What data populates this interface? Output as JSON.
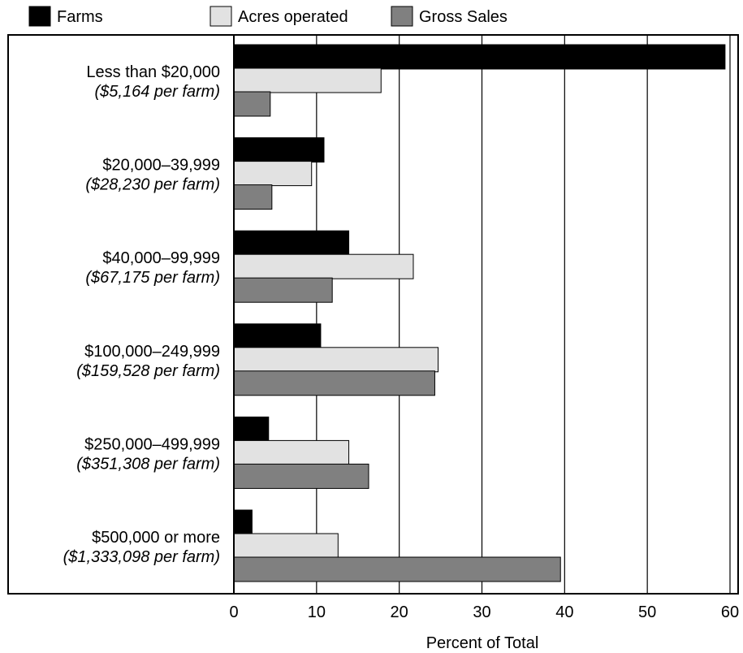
{
  "chart_data": {
    "type": "bar",
    "orientation": "horizontal",
    "categories": [
      "Less than $20,000",
      "$20,000–39,999",
      "$40,000–99,999",
      "$100,000–249,999",
      "$250,000–499,999",
      "$500,000 or more"
    ],
    "category_sublabels": [
      "($5,164 per farm)",
      "($28,230 per farm)",
      "($67,175 per farm)",
      "($159,528 per farm)",
      "($351,308 per farm)",
      "($1,333,098 per farm)"
    ],
    "series": [
      {
        "name": "Farms",
        "color": "#000000",
        "values": [
          59.4,
          10.9,
          13.9,
          10.5,
          4.2,
          2.2
        ]
      },
      {
        "name": "Acres operated",
        "color": "#e2e2e2",
        "values": [
          17.8,
          9.4,
          21.7,
          24.7,
          13.9,
          12.6
        ]
      },
      {
        "name": "Gross Sales",
        "color": "#808080",
        "values": [
          4.4,
          4.6,
          11.9,
          24.3,
          16.3,
          39.5
        ]
      }
    ],
    "xlabel": "Percent of Total",
    "ylabel": "",
    "title": "",
    "xlim": [
      0,
      60
    ],
    "xticks": [
      0,
      10,
      20,
      30,
      40,
      50,
      60
    ],
    "grid": "vertical",
    "legend_position": "top"
  }
}
